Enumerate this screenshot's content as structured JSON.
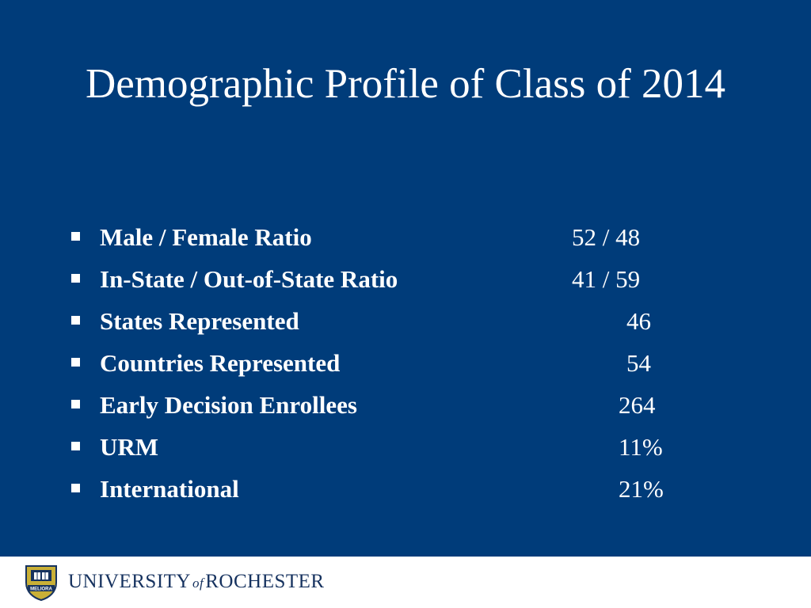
{
  "slide": {
    "title": "Demographic Profile of Class of 2014",
    "background_color": "#003c7a",
    "text_color": "#ffffff",
    "items": [
      {
        "label": "Male / Female Ratio",
        "value": "52 / 48"
      },
      {
        "label": "In-State / Out-of-State Ratio",
        "value": "41 / 59"
      },
      {
        "label": "States Represented",
        "value": "46"
      },
      {
        "label": "Countries Represented",
        "value": "54"
      },
      {
        "label": "Early Decision Enrollees",
        "value": "264"
      },
      {
        "label": "URM",
        "value": "11%"
      },
      {
        "label": "International",
        "value": "21%"
      }
    ]
  },
  "footer": {
    "logo": {
      "icon": "university-seal-icon",
      "name_part1": "UNIVERSITY",
      "name_of": "of",
      "name_part2": "ROCHESTER",
      "color": "#16325f",
      "seal_motto": "MELIORA"
    }
  }
}
